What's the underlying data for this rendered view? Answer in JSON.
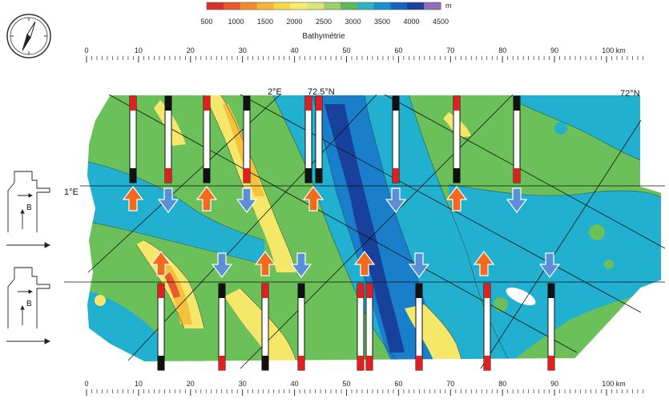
{
  "colorbar": {
    "unit": "m",
    "title": "Bathymétrie",
    "ticks": [
      "500",
      "1000",
      "1500",
      "2000",
      "2500",
      "3000",
      "3500",
      "4000",
      "4500"
    ],
    "colors": [
      "#d7312b",
      "#e8572e",
      "#f08a2e",
      "#f6b43a",
      "#f7d84a",
      "#f5ec6a",
      "#d9e77d",
      "#9fd070",
      "#5db85d",
      "#2cb3c0",
      "#1890cf",
      "#1565c0",
      "#1e3f9a",
      "#8f6fb8"
    ]
  },
  "palette": {
    "very_shallow": "#e8572e",
    "shallow": "#f6c23e",
    "yellow": "#f5e76a",
    "mid": "#6cc05a",
    "deep": "#22b0d0",
    "deeper": "#1a7fcb",
    "deepest": "#17419b",
    "arrow_up": "#f26a1b",
    "arrow_down": "#5b8fd8",
    "bar_red": "#e02020"
  },
  "scales": {
    "top_ticks": [
      "0",
      "10",
      "20",
      "30",
      "40",
      "50",
      "60",
      "70",
      "80",
      "90"
    ],
    "bottom_ticks": [
      "0",
      "10",
      "20",
      "30",
      "40",
      "50",
      "60",
      "70",
      "80",
      "90"
    ],
    "unit": "100 km"
  },
  "grid_labels": {
    "lon_2e": "2°E",
    "lat_72_5n": "72.5°N",
    "lat_72n": "72°N",
    "lon_1e": "1°E"
  },
  "legend": {
    "top_b": "B",
    "bottom_b": "B"
  },
  "profiles_top": [
    {
      "type": "up"
    },
    {
      "type": "down"
    },
    {
      "type": "up"
    },
    {
      "type": "down"
    },
    {
      "type": "up"
    },
    {
      "type": "down"
    },
    {
      "type": "up"
    },
    {
      "type": "down"
    }
  ],
  "profiles_bottom": [
    {
      "type": "up"
    },
    {
      "type": "down"
    },
    {
      "type": "up"
    },
    {
      "type": "down"
    },
    {
      "type": "up"
    },
    {
      "type": "down"
    },
    {
      "type": "up"
    },
    {
      "type": "down"
    }
  ],
  "compass": {
    "icon": "compass-north-arrow-icon"
  }
}
